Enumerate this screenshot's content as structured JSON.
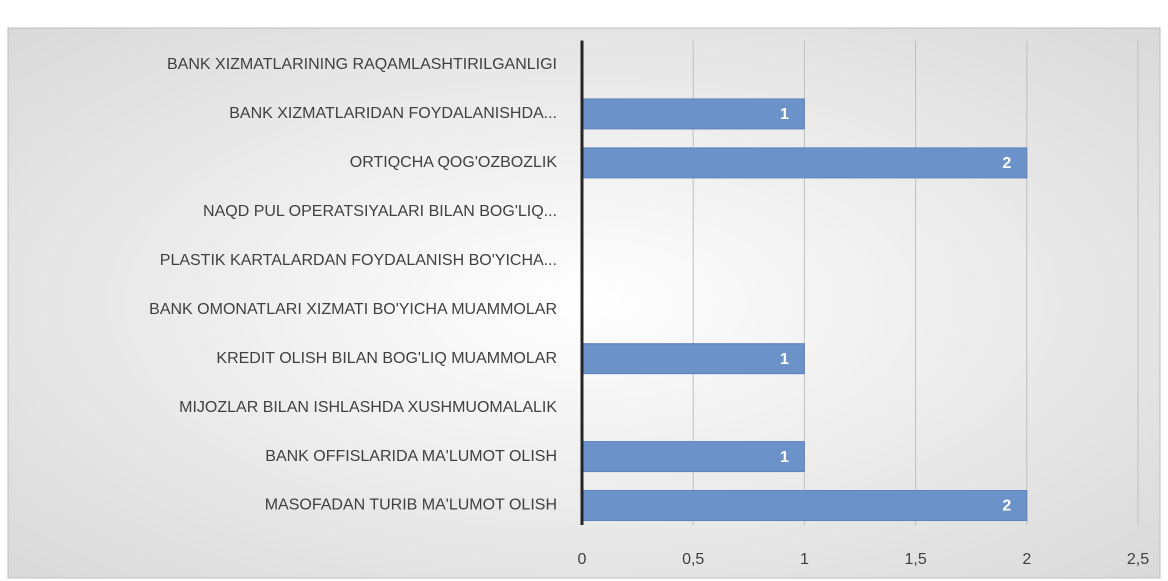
{
  "chart_data": {
    "type": "bar",
    "orientation": "horizontal",
    "categories": [
      "BANK XIZMATLARINING RAQAMLASHTIRILGANLIGI",
      "BANK XIZMATLARIDAN FOYDALANISHDA...",
      "ORTIQCHA QOG'OZBOZLIK",
      "NAQD PUL OPERATSIYALARI BILAN BOG'LIQ...",
      "PLASTIK KARTALARDAN FOYDALANISH BO'YICHA...",
      "BANK OMONATLARI XIZMATI BO'YICHA MUAMMOLAR",
      "KREDIT OLISH BILAN BOG'LIQ MUAMMOLAR",
      "MIJOZLAR BILAN ISHLASHDA XUSHMUOMALALIK",
      "BANK OFFISLARIDA MA'LUMOT OLISH",
      "MASOFADAN TURIB MA'LUMOT OLISH"
    ],
    "values": [
      0,
      1,
      2,
      0,
      0,
      0,
      1,
      0,
      1,
      2
    ],
    "color": "#6b93c9",
    "xlim": [
      0,
      2.5
    ],
    "xticks": [
      0,
      {
        "value": 0.5,
        "label": "0,5"
      },
      1,
      {
        "value": 1.5,
        "label": "1,5"
      },
      2,
      {
        "value": 2.5,
        "label": "2,5"
      }
    ],
    "grid": true
  }
}
